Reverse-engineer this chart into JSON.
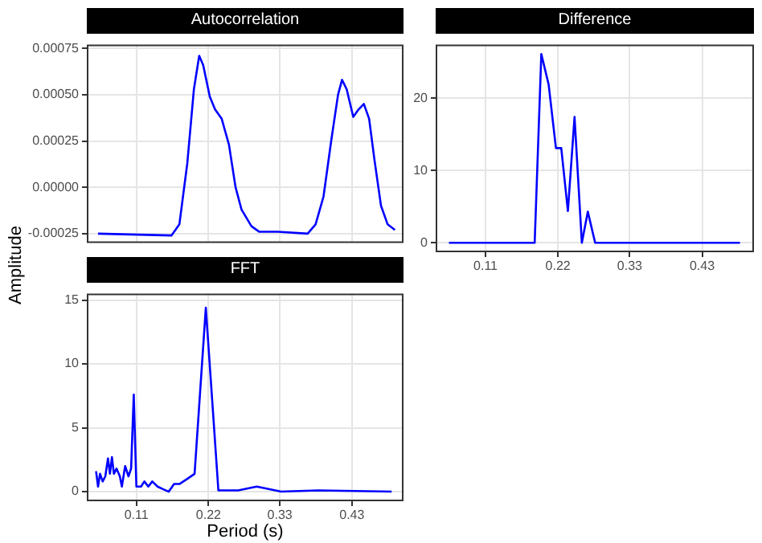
{
  "chart_data": [
    {
      "type": "line",
      "title": "Autocorrelation",
      "xlim": [
        0.033,
        0.512
      ],
      "xticks": [
        0.108,
        0.217,
        0.325,
        0.434
      ],
      "ylim": [
        -0.0003,
        0.00077
      ],
      "yticks": [
        {
          "value": -0.00025,
          "label": "-0.00025"
        },
        {
          "value": 0,
          "label": "0.00000"
        },
        {
          "value": 0.00025,
          "label": "0.00025"
        },
        {
          "value": 0.0005,
          "label": "0.00050"
        },
        {
          "value": 0.00075,
          "label": "0.00075"
        }
      ],
      "tick_labels": "y",
      "grid": true,
      "legend": false,
      "x": [
        0.05,
        0.161,
        0.173,
        0.185,
        0.195,
        0.203,
        0.209,
        0.219,
        0.227,
        0.237,
        0.248,
        0.258,
        0.267,
        0.282,
        0.294,
        0.322,
        0.367,
        0.379,
        0.391,
        0.403,
        0.413,
        0.419,
        0.426,
        0.436,
        0.444,
        0.452,
        0.46,
        0.468,
        0.478,
        0.488,
        0.499
      ],
      "series": [
        {
          "color": "#0000ff",
          "values": [
            -0.00025,
            -0.00026,
            -0.0002,
            0.00013,
            0.00053,
            0.00071,
            0.00066,
            0.00049,
            0.00042,
            0.00037,
            0.00023,
            0,
            -0.00012,
            -0.00021,
            -0.00024,
            -0.00024,
            -0.00025,
            -0.0002,
            -5e-05,
            0.00026,
            0.0005,
            0.00058,
            0.00053,
            0.00038,
            0.00042,
            0.00045,
            0.00037,
            0.00015,
            -0.0001,
            -0.0002,
            -0.00023
          ]
        }
      ]
    },
    {
      "type": "line",
      "title": "Difference",
      "xlim": [
        0.033,
        0.512
      ],
      "xticks": [
        {
          "value": 0.108,
          "label": "0.11"
        },
        {
          "value": 0.217,
          "label": "0.22"
        },
        {
          "value": 0.325,
          "label": "0.33"
        },
        {
          "value": 0.434,
          "label": "0.43"
        }
      ],
      "ylim": [
        -1.3,
        27.4
      ],
      "yticks": [
        0,
        10,
        20
      ],
      "grid": true,
      "legend": false,
      "x": [
        0.053,
        0.182,
        0.192,
        0.203,
        0.214,
        0.222,
        0.232,
        0.242,
        0.253,
        0.262,
        0.273,
        0.491
      ],
      "series": [
        {
          "color": "#0000ff",
          "values": [
            0,
            0,
            26.1,
            21.9,
            13.1,
            13.1,
            4.4,
            17.4,
            0,
            4.3,
            0,
            0
          ]
        }
      ]
    },
    {
      "type": "line",
      "title": "FFT",
      "xlabel": "Period (s)",
      "ylabel": "Amplitude",
      "xlim": [
        0.033,
        0.512
      ],
      "xticks": [
        {
          "value": 0.108,
          "label": "0.11"
        },
        {
          "value": 0.217,
          "label": "0.22"
        },
        {
          "value": 0.325,
          "label": "0.33"
        },
        {
          "value": 0.434,
          "label": "0.43"
        }
      ],
      "ylim": [
        -0.75,
        15.5
      ],
      "yticks": [
        0,
        5,
        10,
        15
      ],
      "grid": true,
      "legend": false,
      "x": [
        0.047,
        0.05,
        0.053,
        0.057,
        0.061,
        0.065,
        0.068,
        0.071,
        0.074,
        0.078,
        0.083,
        0.086,
        0.091,
        0.096,
        0.1,
        0.104,
        0.108,
        0.115,
        0.12,
        0.126,
        0.132,
        0.14,
        0.148,
        0.157,
        0.165,
        0.173,
        0.185,
        0.196,
        0.213,
        0.232,
        0.262,
        0.29,
        0.327,
        0.383,
        0.494
      ],
      "series": [
        {
          "color": "#0000ff",
          "values": [
            1.6,
            0.4,
            1.4,
            0.8,
            1.2,
            2.6,
            1.4,
            2.7,
            1.4,
            1.8,
            1.2,
            0.4,
            2.0,
            1.2,
            1.8,
            7.6,
            0.4,
            0.4,
            0.8,
            0.4,
            0.8,
            0.4,
            0.2,
            0,
            0.6,
            0.6,
            1.0,
            1.4,
            14.4,
            0.1,
            0.1,
            0.4,
            0,
            0.1,
            0
          ]
        }
      ]
    }
  ]
}
